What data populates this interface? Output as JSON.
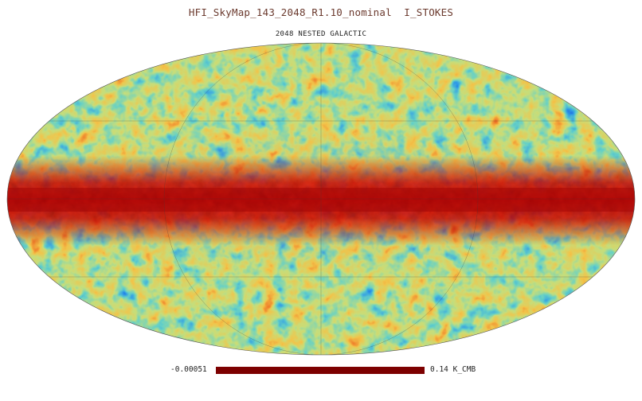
{
  "title": "HFI_SkyMap_143_2048_R1.10_nominal  I_STOKES",
  "subtitle": "2048 NESTED GALACTIC",
  "colorbar": {
    "min_label": "-0.00051",
    "max_label": "0.14 K_CMB",
    "color": "#7d0000"
  },
  "map": {
    "projection": "mollweide",
    "coordinate_system": "galactic",
    "graticule": true,
    "palette": [
      "#0a1f9e",
      "#2d5fd6",
      "#4fa3e8",
      "#7fd6c8",
      "#c9e27a",
      "#f3c24a",
      "#f07b2a",
      "#d62a12",
      "#a80808"
    ],
    "galactic_plane_color": "#b00a0a"
  }
}
